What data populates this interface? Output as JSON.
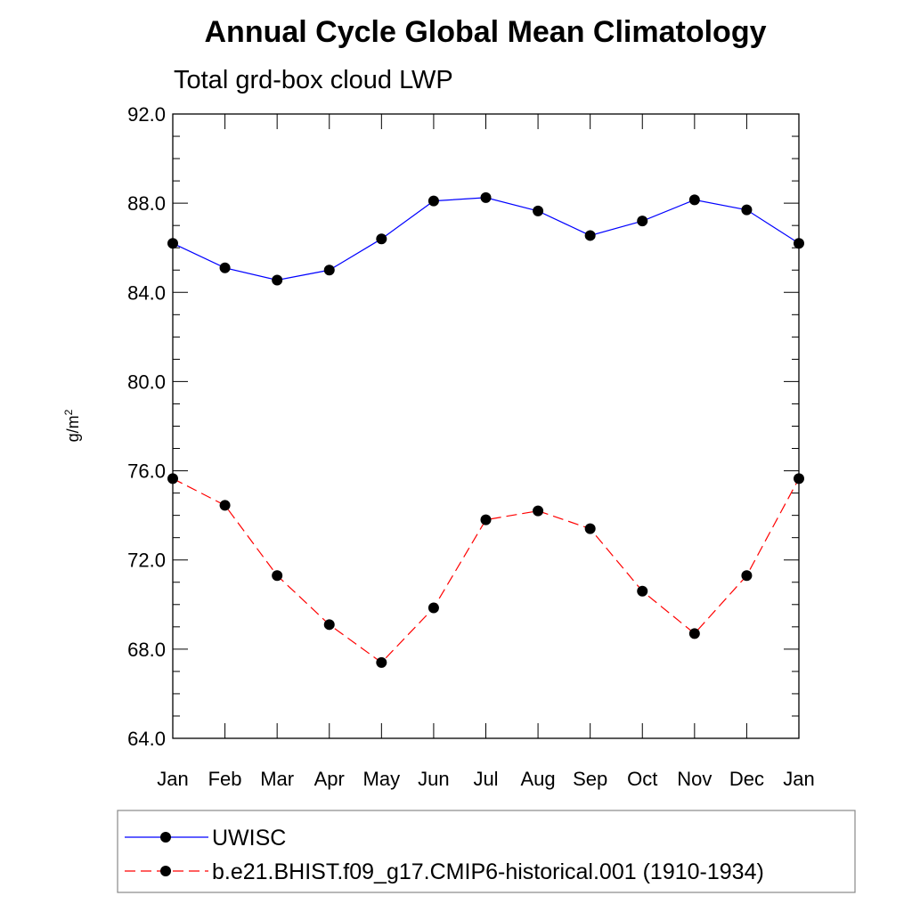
{
  "chart_data": {
    "type": "line",
    "title": "Annual Cycle Global Mean Climatology",
    "subtitle": "Total grd-box cloud LWP",
    "ylabel_base": "g/m",
    "ylabel_sup": "2",
    "categories": [
      "Jan",
      "Feb",
      "Mar",
      "Apr",
      "May",
      "Jun",
      "Jul",
      "Aug",
      "Sep",
      "Oct",
      "Nov",
      "Dec",
      "Jan"
    ],
    "ylim": [
      64.0,
      92.0
    ],
    "yticks": [
      "64.0",
      "68.0",
      "72.0",
      "76.0",
      "80.0",
      "84.0",
      "88.0",
      "92.0"
    ],
    "grid": false,
    "legend_position": "bottom",
    "series": [
      {
        "name": "UWISC",
        "color": "#0000ff",
        "line_style": "solid",
        "marker": "filled-circle",
        "values": [
          86.2,
          85.1,
          84.55,
          85.0,
          86.4,
          88.1,
          88.25,
          87.65,
          86.55,
          87.2,
          88.15,
          87.7,
          86.2
        ]
      },
      {
        "name": "b.e21.BHIST.f09_g17.CMIP6-historical.001 (1910-1934)",
        "color": "#ff0000",
        "line_style": "dashed",
        "marker": "filled-circle",
        "values": [
          75.65,
          74.45,
          71.3,
          69.1,
          67.4,
          69.85,
          73.8,
          74.2,
          73.4,
          70.6,
          68.7,
          71.3,
          75.65
        ]
      }
    ]
  }
}
